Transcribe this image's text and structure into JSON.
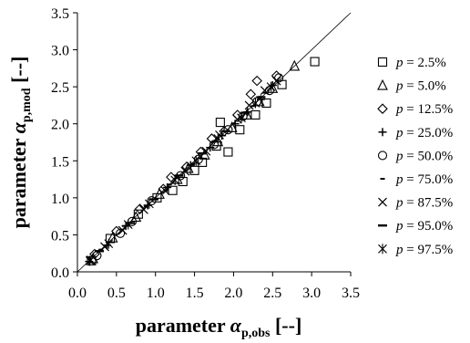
{
  "chart_data": {
    "type": "scatter",
    "xlabel": {
      "base": "parameter ",
      "symbol": "α",
      "sub": "p,obs",
      "unit": " [--]"
    },
    "ylabel": {
      "base": "parameter ",
      "symbol": "α",
      "sub": "p,mod",
      "unit": " [--]"
    },
    "xlim": [
      0,
      3.5
    ],
    "ylim": [
      0,
      3.5
    ],
    "xticks": [
      "0.0",
      "0.5",
      "1.0",
      "1.5",
      "2.0",
      "2.5",
      "3.0",
      "3.5"
    ],
    "yticks": [
      "0.0",
      "0.5",
      "1.0",
      "1.5",
      "2.0",
      "2.5",
      "3.0",
      "3.5"
    ],
    "grid": false,
    "legend_position": "right",
    "reference_line": {
      "type": "identity",
      "from": [
        0,
        0
      ],
      "to": [
        3.5,
        3.5
      ]
    },
    "marker_color": "#000000",
    "series": [
      {
        "name": "p = 2.5%",
        "legend_var": "p",
        "legend_rest": " = 2.5%",
        "marker": "square",
        "x": [
          0.18,
          0.42,
          0.78,
          1.02,
          1.22,
          1.35,
          1.5,
          1.6,
          1.78,
          1.83,
          1.93,
          2.08,
          2.28,
          2.42,
          2.62,
          3.04
        ],
        "y": [
          0.15,
          0.45,
          0.78,
          1.0,
          1.1,
          1.22,
          1.37,
          1.48,
          1.7,
          2.02,
          1.62,
          1.92,
          2.12,
          2.28,
          2.53,
          2.84
        ]
      },
      {
        "name": "p = 5.0%",
        "legend_var": "p",
        "legend_rest": " = 5.0%",
        "marker": "triangle",
        "x": [
          0.2,
          0.45,
          0.75,
          1.05,
          1.28,
          1.42,
          1.63,
          1.8,
          1.98,
          2.17,
          2.33,
          2.5,
          2.78
        ],
        "y": [
          0.18,
          0.46,
          0.74,
          1.05,
          1.25,
          1.4,
          1.58,
          1.76,
          1.95,
          2.12,
          2.3,
          2.48,
          2.78
        ]
      },
      {
        "name": "p = 12.5%",
        "legend_var": "p",
        "legend_rest": " = 12.5%",
        "marker": "diamond",
        "x": [
          0.22,
          0.5,
          0.8,
          1.1,
          1.2,
          1.4,
          1.58,
          1.72,
          1.88,
          2.05,
          2.22,
          2.3,
          2.55
        ],
        "y": [
          0.24,
          0.55,
          0.85,
          1.12,
          1.28,
          1.42,
          1.62,
          1.8,
          1.9,
          2.12,
          2.4,
          2.58,
          2.65
        ]
      },
      {
        "name": "p = 25.0%",
        "legend_var": "p",
        "legend_rest": " = 25.0%",
        "marker": "plus",
        "x": [
          0.15,
          0.38,
          0.62,
          0.9,
          1.15,
          1.45,
          1.7,
          1.85,
          2.02,
          2.18,
          2.35,
          2.5
        ],
        "y": [
          0.14,
          0.36,
          0.62,
          0.9,
          1.14,
          1.44,
          1.68,
          1.84,
          2.0,
          2.16,
          2.33,
          2.52
        ]
      },
      {
        "name": "p = 50.0%",
        "legend_var": "p",
        "legend_rest": " = 50.0%",
        "marker": "circle",
        "x": [
          0.25,
          0.55,
          0.7,
          0.95,
          1.32,
          1.55,
          1.75,
          1.93,
          2.12,
          2.3,
          2.46,
          2.58
        ],
        "y": [
          0.22,
          0.52,
          0.68,
          0.96,
          1.3,
          1.52,
          1.72,
          1.92,
          2.1,
          2.3,
          2.45,
          2.62
        ]
      },
      {
        "name": "p = 75.0%",
        "legend_var": "p",
        "legend_rest": " = 75.0%",
        "marker": "dash",
        "x": [
          0.3,
          0.6,
          0.88,
          1.18,
          1.48,
          1.78,
          2.0,
          2.25,
          2.4
        ],
        "y": [
          0.3,
          0.62,
          0.88,
          1.18,
          1.46,
          1.76,
          2.0,
          2.24,
          2.42
        ]
      },
      {
        "name": "p = 87.5%",
        "legend_var": "p",
        "legend_rest": " = 87.5%",
        "marker": "x",
        "x": [
          0.17,
          0.35,
          0.58,
          0.85,
          1.12,
          1.38,
          1.65,
          1.82,
          2.05,
          2.2,
          2.4,
          2.55
        ],
        "y": [
          0.16,
          0.34,
          0.56,
          0.84,
          1.1,
          1.36,
          1.63,
          1.85,
          2.06,
          2.25,
          2.45,
          2.58
        ]
      },
      {
        "name": "p = 95.0%",
        "legend_var": "p",
        "legend_rest": " = 95.0%",
        "marker": "longdash",
        "x": [
          0.28,
          0.68,
          0.98,
          1.3,
          1.6,
          1.9,
          2.15,
          2.35
        ],
        "y": [
          0.28,
          0.66,
          0.98,
          1.3,
          1.6,
          1.9,
          2.15,
          2.36
        ]
      },
      {
        "name": "p = 97.5%",
        "legend_var": "p",
        "legend_rest": " = 97.5%",
        "marker": "asterisk",
        "x": [
          0.16,
          0.4,
          0.65,
          0.92,
          1.25,
          1.52,
          1.8,
          2.1,
          2.28,
          2.48
        ],
        "y": [
          0.15,
          0.38,
          0.64,
          0.92,
          1.24,
          1.5,
          1.8,
          2.08,
          2.28,
          2.5
        ]
      }
    ]
  }
}
